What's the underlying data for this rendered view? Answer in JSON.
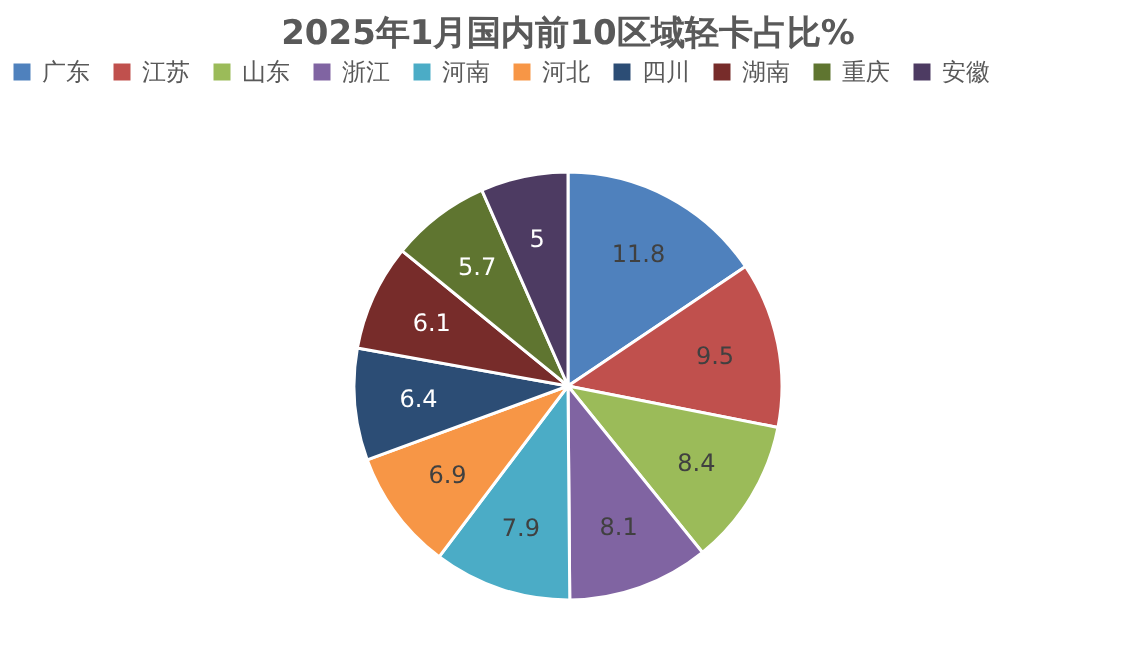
{
  "chart_data": {
    "type": "pie",
    "title": "2025年1月国内前10区域轻卡占比%",
    "categories": [
      "广东",
      "江苏",
      "山东",
      "浙江",
      "河南",
      "河北",
      "四川",
      "湖南",
      "重庆",
      "安徽"
    ],
    "values": [
      11.8,
      9.5,
      8.4,
      8.1,
      7.9,
      6.9,
      6.4,
      6.1,
      5.7,
      5
    ],
    "colors": [
      "#4f81bd",
      "#c0504d",
      "#9bbb59",
      "#8064a2",
      "#4bacc6",
      "#f79646",
      "#2c4d75",
      "#772c2a",
      "#5f7530",
      "#4d3b62"
    ],
    "data_labels": true,
    "legend": "top"
  }
}
